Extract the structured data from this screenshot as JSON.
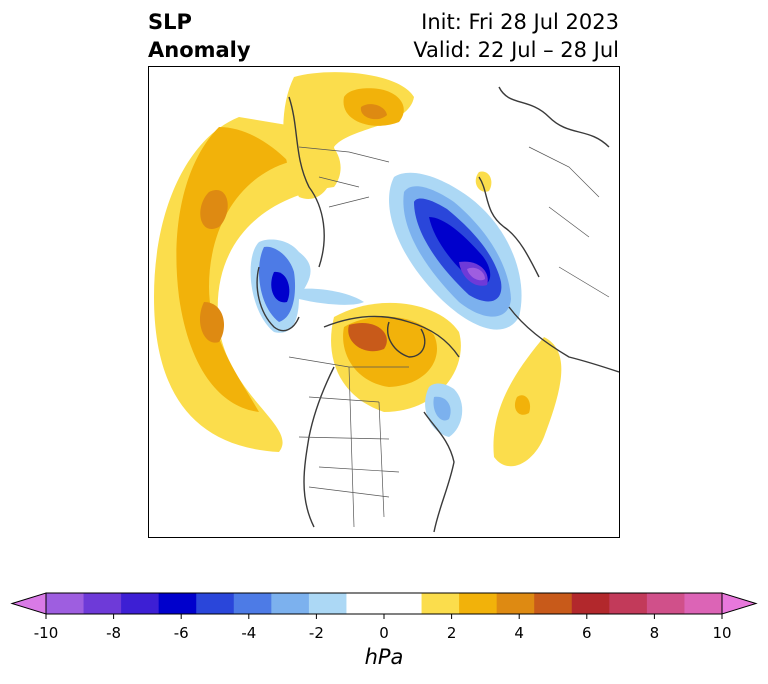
{
  "title": {
    "left_line1": "SLP",
    "left_line2": "Anomaly",
    "init": "Init: Fri 28 Jul 2023",
    "valid": "Valid: 22 Jul – 28 Jul"
  },
  "map": {
    "projection": "north-polar-stereographic",
    "features": [
      "coastlines",
      "country-borders",
      "us-state-borders"
    ]
  },
  "colorbar": {
    "units": "hPa",
    "ticks": [
      "-10",
      "-8",
      "-6",
      "-4",
      "-2",
      "0",
      "2",
      "4",
      "6",
      "8",
      "10"
    ],
    "extend": "both",
    "colors": [
      "#d97ae6",
      "#9e5ee0",
      "#6e3ad8",
      "#3d1fd4",
      "#0000cc",
      "#2a46da",
      "#4d7be6",
      "#7cb1ee",
      "#acd8f5",
      "#ffffff",
      "#ffffff",
      "#fbdd4c",
      "#f2b20a",
      "#de8a12",
      "#c85a1a",
      "#b2282c",
      "#c23a5a",
      "#d0508a",
      "#dc64b6",
      "#e878dc"
    ]
  }
}
